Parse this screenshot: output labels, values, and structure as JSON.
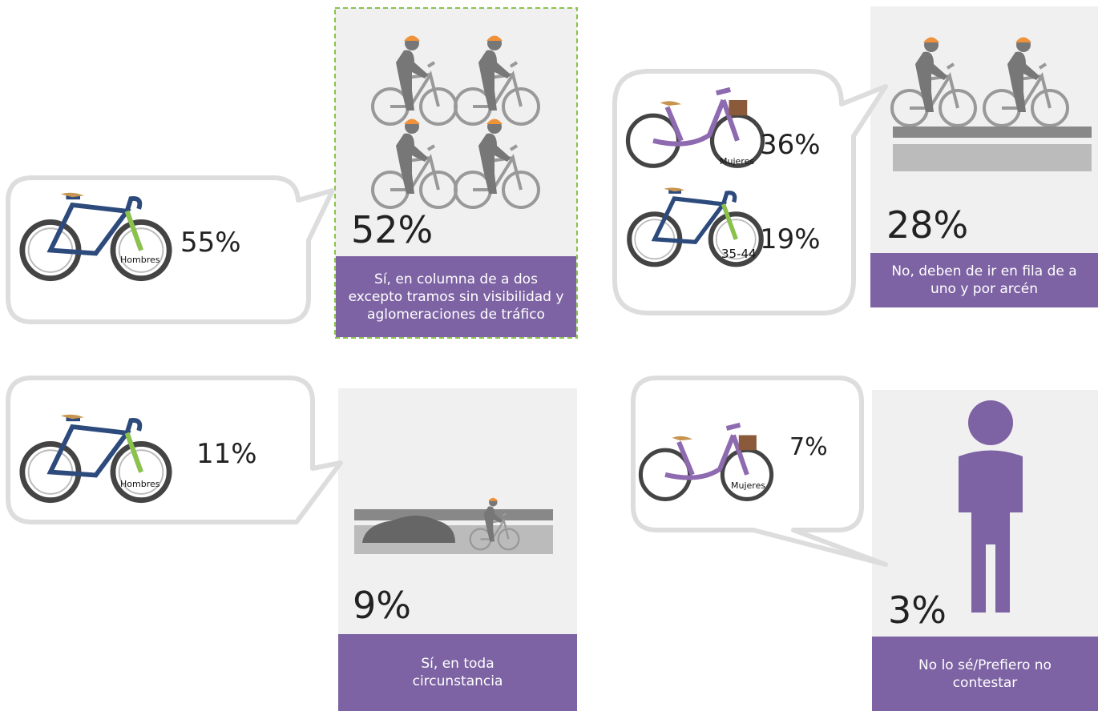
{
  "panels": [
    {
      "percent": "52%",
      "label": "Sí, en columna de a dos excepto tramos sin visibilidad y aglomeraciones de tráfico"
    },
    {
      "percent": "28%",
      "label": "No, deben de ir en fila de a uno y por arcén"
    },
    {
      "percent": "9%",
      "label": "Sí, en toda circunstancia"
    },
    {
      "percent": "3%",
      "label": "No lo sé/Prefiero no contestar"
    }
  ],
  "callouts": [
    {
      "items": [
        {
          "percent": "55%",
          "tag": "Hombres"
        }
      ]
    },
    {
      "items": [
        {
          "percent": "36%",
          "tag": "Mujeres"
        },
        {
          "percent": "19%",
          "tag": "35-44"
        }
      ]
    },
    {
      "items": [
        {
          "percent": "11%",
          "tag": "Hombres"
        }
      ]
    },
    {
      "items": [
        {
          "percent": "7%",
          "tag": "Mujeres"
        }
      ]
    }
  ]
}
